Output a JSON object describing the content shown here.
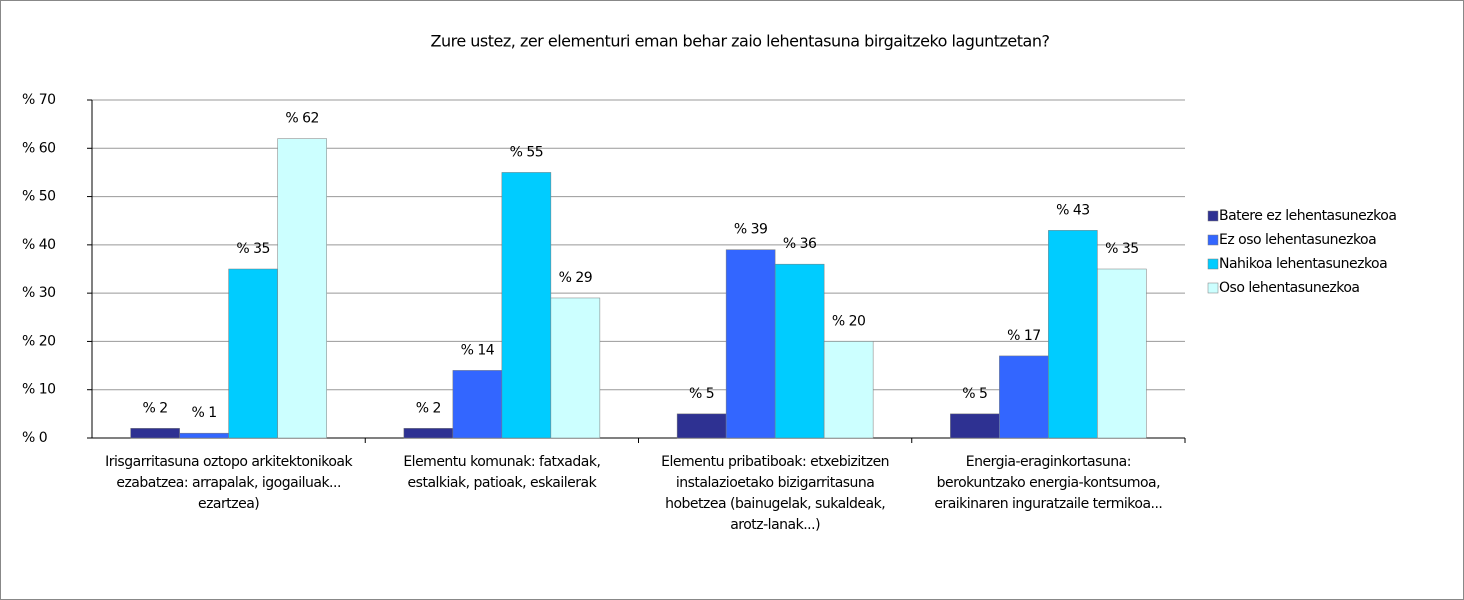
{
  "chart_data": {
    "type": "bar",
    "title": "Zure ustez, zer elementuri eman behar zaio lehentasuna birgaitzeko laguntzetan?",
    "categories": [
      "Irisgarritasuna oztopo arkitektonikoak ezabatzea: arrapalak, igogailuak... ezartzea)",
      "Elementu komunak: fatxadak, estalkiak, patioak, eskailerak",
      "Elementu pribatiboak: etxebizitzen instalazioetako bizigarritasuna hobetzea (bainugelak, sukaldeak, arotz-lanak...)",
      "Energia-eraginkortasuna: berokuntzako energia-kontsumoa, eraikinaren inguratzaile termikoa..."
    ],
    "series": [
      {
        "name": "Batere ez lehentasunezkoa",
        "color": "#2e3192",
        "values": [
          2,
          2,
          5,
          5
        ],
        "value_labels": [
          "% 2",
          "% 2",
          "% 5",
          "% 5"
        ]
      },
      {
        "name": "Ez oso lehentasunezkoa",
        "color": "#3366ff",
        "values": [
          1,
          14,
          39,
          17
        ],
        "value_labels": [
          "% 1",
          "% 14",
          "% 39",
          "% 17"
        ]
      },
      {
        "name": "Nahikoa lehentasunezkoa",
        "color": "#00ccff",
        "values": [
          35,
          55,
          36,
          43
        ],
        "value_labels": [
          "% 35",
          "% 55",
          "% 36",
          "% 43"
        ]
      },
      {
        "name": "Oso lehentasunezkoa",
        "color": "#ccffff",
        "values": [
          62,
          29,
          20,
          35
        ],
        "value_labels": [
          "% 62",
          "% 29",
          "% 20",
          "% 35"
        ]
      }
    ],
    "ylim": [
      0,
      70
    ],
    "yticks": [
      {
        "value": 0,
        "label": "% 0"
      },
      {
        "value": 10,
        "label": "% 10"
      },
      {
        "value": 20,
        "label": "% 20"
      },
      {
        "value": 30,
        "label": "% 30"
      },
      {
        "value": 40,
        "label": "% 40"
      },
      {
        "value": 50,
        "label": "% 50"
      },
      {
        "value": 60,
        "label": "% 60"
      },
      {
        "value": 70,
        "label": "% 70"
      }
    ],
    "grid": true,
    "legend": "right"
  }
}
